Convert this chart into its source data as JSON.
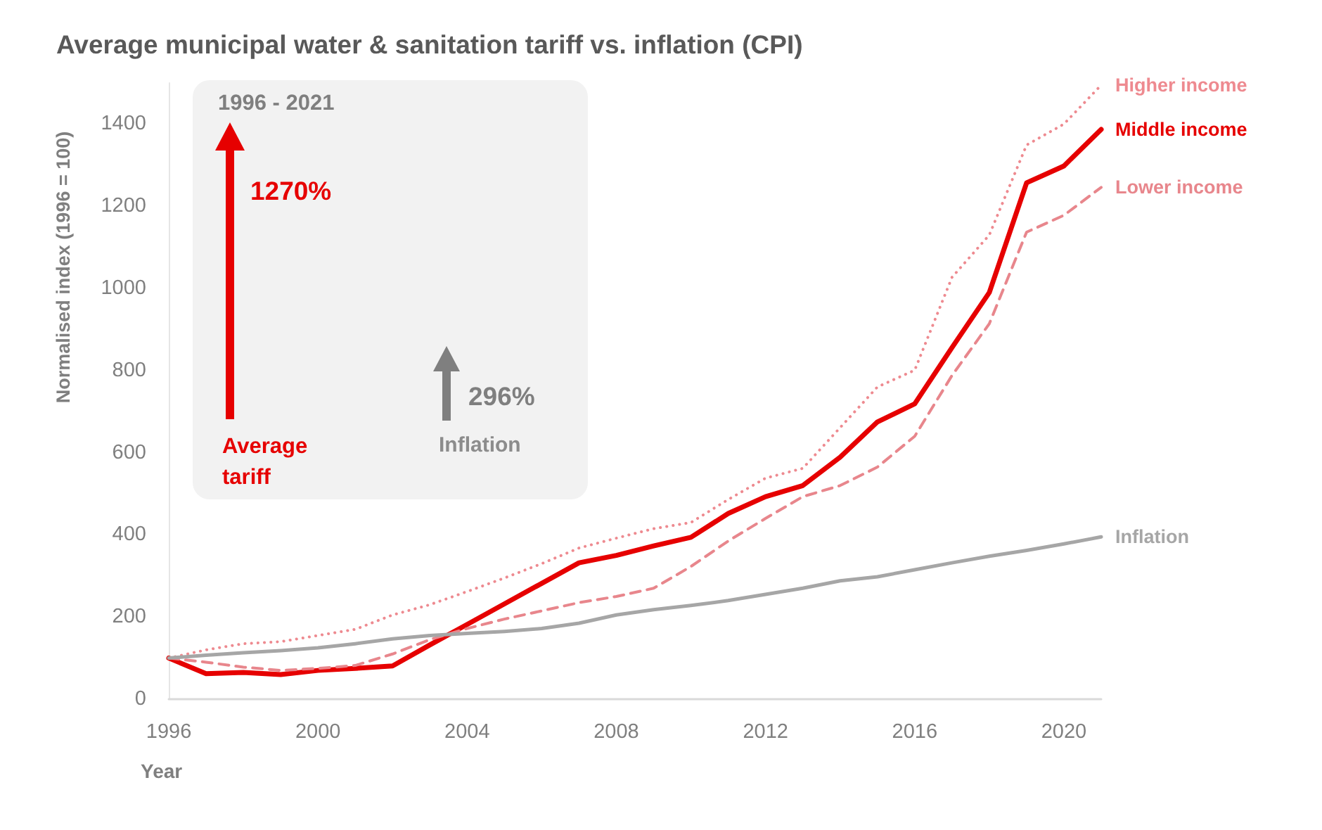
{
  "chart_data": {
    "type": "line",
    "title": "Average municipal water & sanitation tariff vs. inflation (CPI)",
    "xlabel": "Year",
    "ylabel": "Normalised index (1996 = 100)",
    "x": [
      1996,
      1997,
      1998,
      1999,
      2000,
      2001,
      2002,
      2003,
      2004,
      2005,
      2006,
      2007,
      2008,
      2009,
      2010,
      2011,
      2012,
      2013,
      2014,
      2015,
      2016,
      2017,
      2018,
      2019,
      2020,
      2021
    ],
    "series": [
      {
        "name": "Higher income",
        "color": "#ee8a90",
        "line_style": "dotted",
        "values": [
          100,
          120,
          135,
          140,
          155,
          170,
          205,
          230,
          262,
          295,
          330,
          368,
          392,
          415,
          430,
          486,
          538,
          562,
          661,
          760,
          801,
          1027,
          1130,
          1349,
          1400,
          1495
        ]
      },
      {
        "name": "Middle income",
        "color": "#e60000",
        "line_style": "solid",
        "values": [
          100,
          62,
          65,
          60,
          70,
          75,
          81,
          132,
          182,
          232,
          282,
          332,
          350,
          373,
          394,
          452,
          493,
          520,
          589,
          675,
          719,
          856,
          990,
          1257,
          1298,
          1387
        ]
      },
      {
        "name": "Lower income",
        "color": "#e8868c",
        "line_style": "dashed",
        "values": [
          100,
          90,
          78,
          70,
          75,
          82,
          110,
          145,
          172,
          195,
          215,
          235,
          250,
          270,
          323,
          385,
          440,
          493,
          520,
          565,
          640,
          788,
          914,
          1137,
          1178,
          1246
        ]
      },
      {
        "name": "Inflation",
        "color": "#a6a6a6",
        "line_style": "solid",
        "values": [
          100,
          107,
          113,
          118,
          125,
          135,
          147,
          155,
          160,
          165,
          172,
          185,
          205,
          218,
          228,
          240,
          255,
          270,
          288,
          298,
          315,
          332,
          348,
          362,
          378,
          395
        ]
      }
    ],
    "xlim": [
      1996,
      2021
    ],
    "xticks": [
      1996,
      2000,
      2004,
      2008,
      2012,
      2016,
      2020
    ],
    "ylim": [
      0,
      1500
    ],
    "yticks": [
      0,
      200,
      400,
      600,
      800,
      1000,
      1200,
      1400
    ],
    "marker": "none",
    "annotations": [
      "1996 - 2021",
      "1270%",
      "Average tariff",
      "296%",
      "Inflation"
    ]
  }
}
